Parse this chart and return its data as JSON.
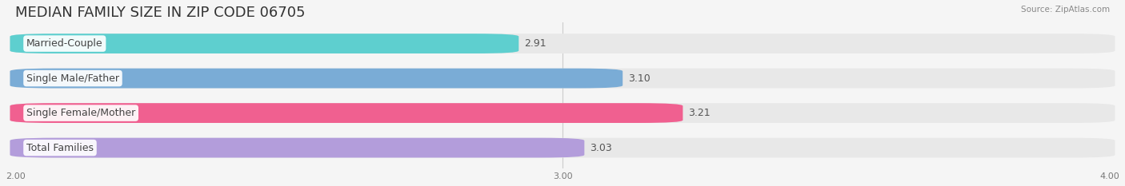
{
  "title": "MEDIAN FAMILY SIZE IN ZIP CODE 06705",
  "source": "Source: ZipAtlas.com",
  "categories": [
    "Married-Couple",
    "Single Male/Father",
    "Single Female/Mother",
    "Total Families"
  ],
  "values": [
    2.91,
    3.1,
    3.21,
    3.03
  ],
  "bar_colors": [
    "#5ecfcf",
    "#7aacd6",
    "#f06090",
    "#b39ddb"
  ],
  "bar_edge_colors": [
    "#5ecfcf",
    "#7aacd6",
    "#f06090",
    "#b39ddb"
  ],
  "xlim": [
    2.0,
    4.0
  ],
  "xticks": [
    2.0,
    3.0,
    4.0
  ],
  "xtick_labels": [
    "2.00",
    "3.00",
    "4.00"
  ],
  "background_color": "#f5f5f5",
  "bar_background_color": "#e8e8e8",
  "title_fontsize": 13,
  "label_fontsize": 9,
  "value_fontsize": 9,
  "bar_height": 0.55
}
